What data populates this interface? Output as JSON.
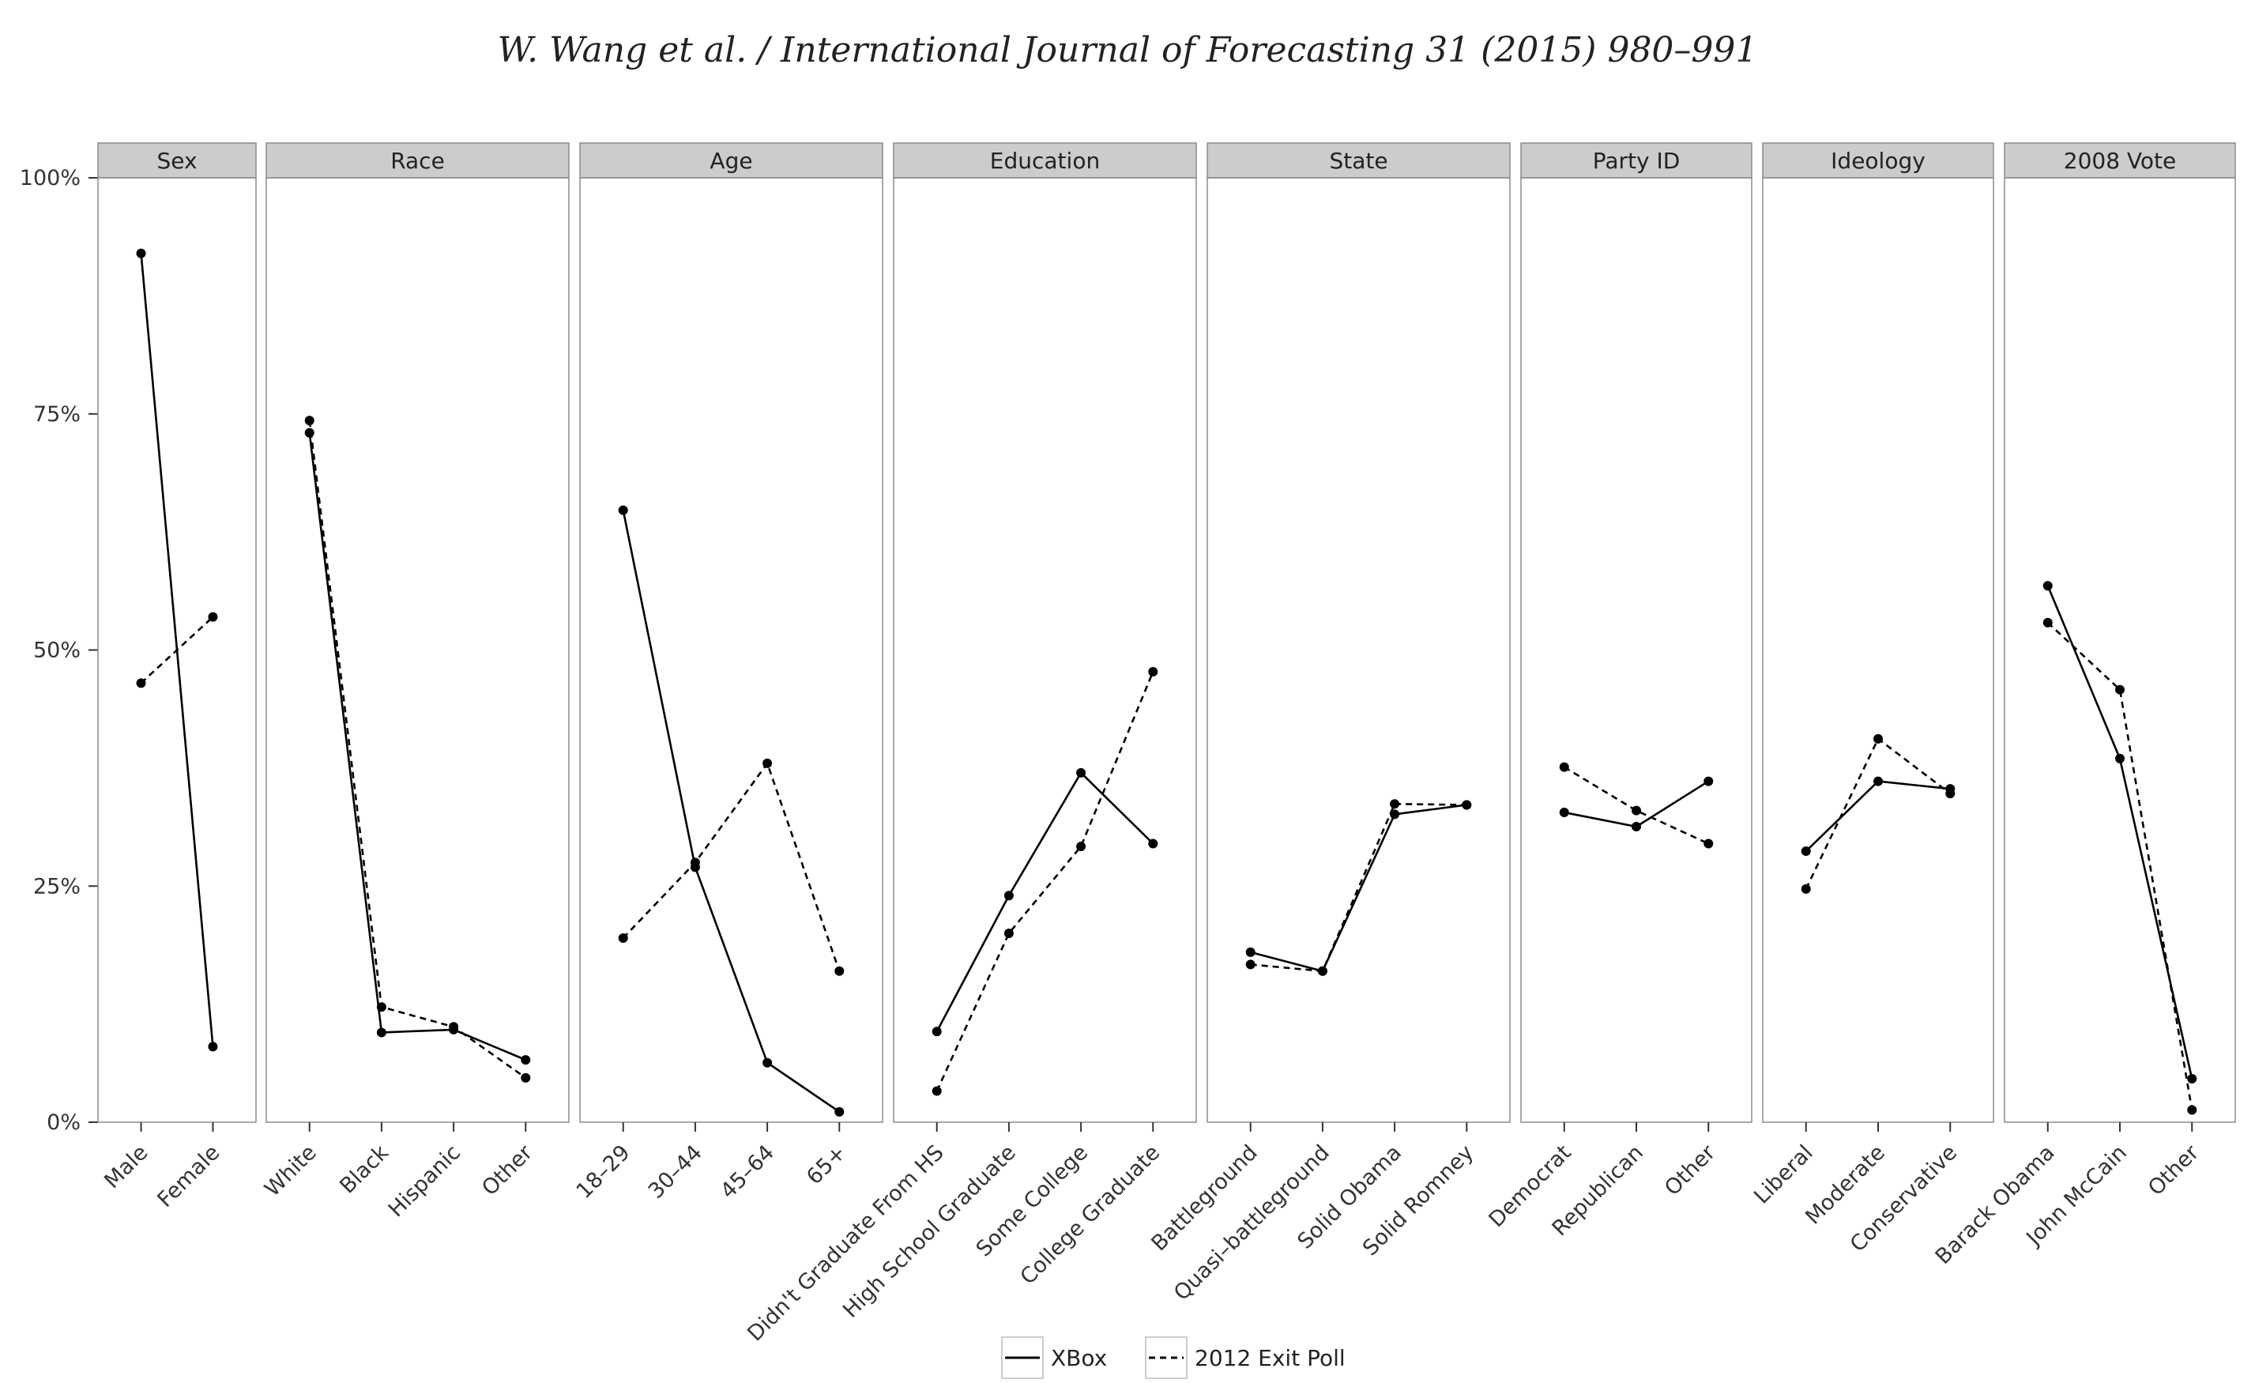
{
  "header": "W. Wang et al. / International Journal of Forecasting 31 (2015) 980–991",
  "chart_data": {
    "type": "line",
    "y_tick_labels": [
      "0%",
      "25%",
      "50%",
      "75%",
      "100%"
    ],
    "y_ticks": [
      0,
      25,
      50,
      75,
      100
    ],
    "ylim": [
      0,
      100
    ],
    "grid": false,
    "legend_position": "bottom",
    "series": [
      {
        "name": "XBox",
        "style": "solid",
        "color": "#000000"
      },
      {
        "name": "2012 Exit Poll",
        "style": "dashed",
        "color": "#000000"
      }
    ],
    "panels": [
      {
        "title": "Sex",
        "categories": [
          "Male",
          "Female"
        ],
        "xbox": [
          92,
          8
        ],
        "exit_poll": [
          46.5,
          53.5
        ]
      },
      {
        "title": "Race",
        "categories": [
          "White",
          "Black",
          "Hispanic",
          "Other"
        ],
        "xbox": [
          73,
          9.5,
          9.8,
          6.6
        ],
        "exit_poll": [
          74.3,
          12.2,
          10.1,
          4.7
        ]
      },
      {
        "title": "Age",
        "categories": [
          "18–29",
          "30–44",
          "45–64",
          "65+"
        ],
        "xbox": [
          64.8,
          27,
          6.3,
          1.1
        ],
        "exit_poll": [
          19.5,
          27.5,
          38,
          16
        ]
      },
      {
        "title": "Education",
        "categories": [
          "Didn't Graduate From HS",
          "High School Graduate",
          "Some College",
          "College Graduate"
        ],
        "xbox": [
          9.6,
          24,
          37,
          29.5
        ],
        "exit_poll": [
          3.3,
          20,
          29.2,
          47.7
        ]
      },
      {
        "title": "State",
        "categories": [
          "Battleground",
          "Quasi–battleground",
          "Solid Obama",
          "Solid Romney"
        ],
        "xbox": [
          18,
          16,
          32.6,
          33.6
        ],
        "exit_poll": [
          16.7,
          16,
          33.7,
          33.6
        ]
      },
      {
        "title": "Party ID",
        "categories": [
          "Democrat",
          "Republican",
          "Other"
        ],
        "xbox": [
          32.8,
          31.3,
          36.1
        ],
        "exit_poll": [
          37.6,
          33,
          29.5
        ]
      },
      {
        "title": "Ideology",
        "categories": [
          "Liberal",
          "Moderate",
          "Conservative"
        ],
        "xbox": [
          28.7,
          36.1,
          35.3
        ],
        "exit_poll": [
          24.7,
          40.6,
          34.8
        ]
      },
      {
        "title": "2008 Vote",
        "categories": [
          "Barack Obama",
          "John McCain",
          "Other"
        ],
        "xbox": [
          56.8,
          38.5,
          4.6
        ],
        "exit_poll": [
          52.9,
          45.8,
          1.3
        ]
      }
    ]
  }
}
